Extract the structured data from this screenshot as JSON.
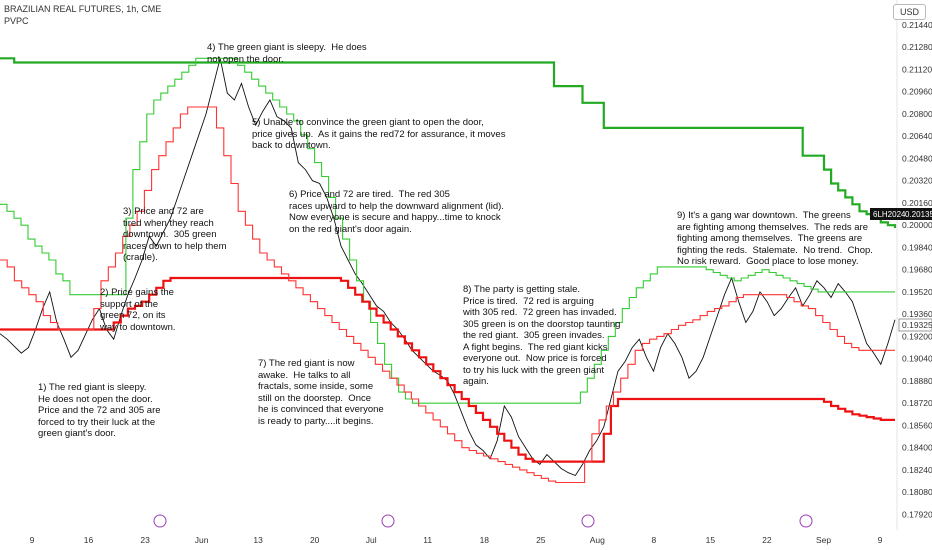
{
  "header": {
    "symbol_line": "BRAZILIAN REAL FUTURES, 1h, CME",
    "indicator": "PVPC",
    "currency": "USD"
  },
  "chart_data": {
    "type": "line",
    "ylim": [
      0.1788,
      0.2149
    ],
    "y_ticks": [
      "0.21440",
      "0.21280",
      "0.21120",
      "0.20960",
      "0.20800",
      "0.20640",
      "0.20480",
      "0.20320",
      "0.20160",
      "0.20000",
      "0.19840",
      "0.19680",
      "0.19520",
      "0.19360",
      "0.19200",
      "0.19040",
      "0.18880",
      "0.18720",
      "0.18560",
      "0.18400",
      "0.18240",
      "0.18080",
      "0.17920"
    ],
    "x_ticks": [
      "9",
      "16",
      "23",
      "Jun",
      "13",
      "20",
      "Jul",
      "11",
      "18",
      "25",
      "Aug",
      "8",
      "15",
      "22",
      "Sep",
      "9"
    ],
    "last_price": {
      "label_symbol": "6LH2024",
      "symbol_value": "0.20135",
      "value": "0.19325"
    },
    "grid": false,
    "series": [
      {
        "kind": "price",
        "color": "#111111",
        "values": [
          0.1922,
          0.1918,
          0.1913,
          0.1908,
          0.1912,
          0.1925,
          0.194,
          0.1952,
          0.193,
          0.1918,
          0.1905,
          0.191,
          0.1921,
          0.1932,
          0.194,
          0.1925,
          0.1918,
          0.1935,
          0.195,
          0.1962,
          0.1975,
          0.1992,
          0.1985,
          0.1995,
          0.2005,
          0.202,
          0.2035,
          0.205,
          0.2065,
          0.208,
          0.21,
          0.212,
          0.2095,
          0.209,
          0.2102,
          0.2085,
          0.2072,
          0.2082,
          0.209,
          0.2078,
          0.2075,
          0.207,
          0.2045,
          0.204,
          0.2032,
          0.203,
          0.202,
          0.2005,
          0.1985,
          0.1975,
          0.1965,
          0.1958,
          0.195,
          0.1942,
          0.1938,
          0.193,
          0.1925,
          0.1918,
          0.191,
          0.1905,
          0.19,
          0.1895,
          0.1892,
          0.1888,
          0.1878,
          0.1865,
          0.1852,
          0.1842,
          0.1838,
          0.1832,
          0.1845,
          0.187,
          0.1862,
          0.1848,
          0.184,
          0.1832,
          0.1828,
          0.1835,
          0.183,
          0.1825,
          0.1822,
          0.182,
          0.1828,
          0.1838,
          0.1845,
          0.1855,
          0.1875,
          0.1895,
          0.1902,
          0.1912,
          0.1918,
          0.1905,
          0.1895,
          0.1912,
          0.1922,
          0.1915,
          0.1905,
          0.189,
          0.1895,
          0.1905,
          0.192,
          0.1935,
          0.195,
          0.1962,
          0.1945,
          0.193,
          0.1938,
          0.1952,
          0.1945,
          0.1935,
          0.194,
          0.1948,
          0.1955,
          0.1942,
          0.195,
          0.196,
          0.1955,
          0.1948,
          0.1958,
          0.1952,
          0.1945,
          0.193,
          0.1915,
          0.1908,
          0.19,
          0.1915,
          0.1932
        ]
      },
      {
        "kind": "green-slow",
        "color": "#22aa22",
        "values": [
          0.212,
          0.212,
          0.2117,
          0.2117,
          0.2117,
          0.2117,
          0.2117,
          0.2117,
          0.2117,
          0.2117,
          0.2117,
          0.2117,
          0.2117,
          0.2117,
          0.2117,
          0.2117,
          0.2117,
          0.2117,
          0.2117,
          0.2117,
          0.2117,
          0.2117,
          0.2117,
          0.2117,
          0.2117,
          0.2117,
          0.2117,
          0.2117,
          0.2117,
          0.2117,
          0.2117,
          0.2117,
          0.2117,
          0.2117,
          0.2117,
          0.2117,
          0.2117,
          0.2117,
          0.2117,
          0.2117,
          0.2117,
          0.2117,
          0.2117,
          0.2117,
          0.2117,
          0.2117,
          0.2117,
          0.2117,
          0.2117,
          0.2117,
          0.2117,
          0.2117,
          0.2117,
          0.2117,
          0.2117,
          0.2117,
          0.2117,
          0.2117,
          0.2117,
          0.2117,
          0.2117,
          0.2117,
          0.2117,
          0.2117,
          0.2117,
          0.2117,
          0.2117,
          0.2117,
          0.2117,
          0.2117,
          0.2117,
          0.2117,
          0.2117,
          0.2117,
          0.2117,
          0.2117,
          0.2117,
          0.2117,
          0.21,
          0.21,
          0.21,
          0.21,
          0.2088,
          0.2088,
          0.2088,
          0.207,
          0.207,
          0.207,
          0.207,
          0.207,
          0.207,
          0.207,
          0.207,
          0.207,
          0.207,
          0.207,
          0.207,
          0.207,
          0.207,
          0.207,
          0.207,
          0.207,
          0.207,
          0.207,
          0.207,
          0.207,
          0.207,
          0.207,
          0.207,
          0.207,
          0.207,
          0.207,
          0.207,
          0.205,
          0.205,
          0.205,
          0.204,
          0.203,
          0.2025,
          0.202,
          0.2015,
          0.201,
          0.2008,
          0.2005,
          0.2002,
          0.2,
          0.1998
        ]
      },
      {
        "kind": "green-fast",
        "color": "#33cc33",
        "values": [
          0.2015,
          0.201,
          0.2005,
          0.2,
          0.199,
          0.1985,
          0.198,
          0.1975,
          0.1965,
          0.196,
          0.195,
          0.195,
          0.195,
          0.195,
          0.195,
          0.195,
          0.195,
          0.195,
          0.2005,
          0.204,
          0.206,
          0.208,
          0.209,
          0.2095,
          0.21,
          0.2105,
          0.211,
          0.2115,
          0.212,
          0.212,
          0.212,
          0.212,
          0.212,
          0.212,
          0.2115,
          0.211,
          0.2105,
          0.21,
          0.2095,
          0.209,
          0.2085,
          0.208,
          0.2075,
          0.2065,
          0.2055,
          0.2045,
          0.2035,
          0.202,
          0.2005,
          0.199,
          0.1975,
          0.196,
          0.1945,
          0.193,
          0.1915,
          0.19,
          0.189,
          0.188,
          0.1875,
          0.1872,
          0.1872,
          0.1872,
          0.1872,
          0.1872,
          0.1872,
          0.1872,
          0.1872,
          0.1872,
          0.1872,
          0.1872,
          0.1872,
          0.1872,
          0.1872,
          0.1872,
          0.1872,
          0.1872,
          0.1872,
          0.1872,
          0.1872,
          0.1872,
          0.1872,
          0.1872,
          0.1872,
          0.188,
          0.189,
          0.19,
          0.191,
          0.192,
          0.193,
          0.194,
          0.1948,
          0.1955,
          0.196,
          0.1965,
          0.197,
          0.197,
          0.197,
          0.197,
          0.197,
          0.197,
          0.197,
          0.1968,
          0.1966,
          0.1964,
          0.1962,
          0.196,
          0.1962,
          0.1964,
          0.1966,
          0.1968,
          0.1966,
          0.1964,
          0.1962,
          0.196,
          0.1958,
          0.1956,
          0.1954,
          0.1952,
          0.1952,
          0.1952,
          0.1952,
          0.1952,
          0.1952,
          0.1952,
          0.1952,
          0.1952,
          0.1952,
          0.1952,
          0.1952
        ]
      },
      {
        "kind": "red-slow",
        "color": "#ee1111",
        "values": [
          0.1925,
          0.1925,
          0.1925,
          0.1925,
          0.1925,
          0.1925,
          0.1925,
          0.1925,
          0.1925,
          0.1925,
          0.1925,
          0.1925,
          0.1925,
          0.1925,
          0.1925,
          0.1925,
          0.193,
          0.1935,
          0.194,
          0.1942,
          0.1945,
          0.195,
          0.1955,
          0.196,
          0.1962,
          0.1962,
          0.1962,
          0.1962,
          0.1962,
          0.1962,
          0.1962,
          0.1962,
          0.1962,
          0.1962,
          0.1962,
          0.1962,
          0.1962,
          0.1962,
          0.1962,
          0.1962,
          0.1962,
          0.1962,
          0.1962,
          0.1962,
          0.1962,
          0.1962,
          0.1962,
          0.1962,
          0.196,
          0.1955,
          0.195,
          0.1945,
          0.194,
          0.1935,
          0.193,
          0.1925,
          0.192,
          0.1915,
          0.191,
          0.1905,
          0.19,
          0.1895,
          0.189,
          0.1885,
          0.188,
          0.1875,
          0.187,
          0.1865,
          0.186,
          0.1855,
          0.185,
          0.1845,
          0.184,
          0.1835,
          0.1832,
          0.183,
          0.183,
          0.183,
          0.183,
          0.183,
          0.183,
          0.183,
          0.183,
          0.183,
          0.183,
          0.185,
          0.187,
          0.1875,
          0.1875,
          0.1875,
          0.1875,
          0.1875,
          0.1875,
          0.1875,
          0.1875,
          0.1875,
          0.1875,
          0.1875,
          0.1875,
          0.1875,
          0.1875,
          0.1875,
          0.1875,
          0.1875,
          0.1875,
          0.1875,
          0.1875,
          0.1875,
          0.1875,
          0.1875,
          0.1875,
          0.1875,
          0.1875,
          0.1875,
          0.1875,
          0.1875,
          0.1873,
          0.187,
          0.1868,
          0.1866,
          0.1864,
          0.1863,
          0.1862,
          0.1861,
          0.186,
          0.186,
          0.186
        ]
      },
      {
        "kind": "red-fast",
        "color": "#ff3333",
        "values": [
          0.1975,
          0.197,
          0.196,
          0.1955,
          0.195,
          0.1945,
          0.1935,
          0.193,
          0.1925,
          0.1925,
          0.1925,
          0.1925,
          0.1925,
          0.194,
          0.196,
          0.197,
          0.198,
          0.1992,
          0.2,
          0.201,
          0.2025,
          0.204,
          0.205,
          0.206,
          0.207,
          0.208,
          0.2085,
          0.2085,
          0.2085,
          0.2085,
          0.207,
          0.205,
          0.203,
          0.201,
          0.2,
          0.199,
          0.198,
          0.1975,
          0.197,
          0.1965,
          0.196,
          0.1955,
          0.195,
          0.1945,
          0.194,
          0.1935,
          0.193,
          0.1925,
          0.192,
          0.1915,
          0.191,
          0.1905,
          0.19,
          0.1895,
          0.189,
          0.1885,
          0.188,
          0.1875,
          0.187,
          0.1865,
          0.186,
          0.1855,
          0.185,
          0.1845,
          0.184,
          0.1838,
          0.1836,
          0.1834,
          0.1832,
          0.183,
          0.1828,
          0.1826,
          0.1824,
          0.1822,
          0.182,
          0.1818,
          0.1816,
          0.1815,
          0.1815,
          0.1815,
          0.1815,
          0.183,
          0.185,
          0.186,
          0.187,
          0.188,
          0.189,
          0.19,
          0.191,
          0.1915,
          0.1918,
          0.192,
          0.1922,
          0.1925,
          0.1928,
          0.193,
          0.1932,
          0.1935,
          0.1938,
          0.194,
          0.1942,
          0.1945,
          0.1948,
          0.195,
          0.195,
          0.195,
          0.195,
          0.195,
          0.195,
          0.1948,
          0.1945,
          0.1942,
          0.194,
          0.1935,
          0.193,
          0.1925,
          0.192,
          0.1915,
          0.1912,
          0.191,
          0.191,
          0.191,
          0.191,
          0.191,
          0.191
        ]
      }
    ]
  },
  "annotations": [
    {
      "id": "n1",
      "text": "1) The red giant is sleepy.\nHe does not open the door.\nPrice and the 72 and 305 are\nforced to try their luck at the\ngreen giant's door."
    },
    {
      "id": "n2",
      "text": "2) Price gains the\nsupport of the\ngreen 72, on its\nway to downtown."
    },
    {
      "id": "n3",
      "text": "3) Price and 72 are\ntired when they reach\ndowntown.  305 green\nraces down to help them\n(cradle)."
    },
    {
      "id": "n4",
      "text": "4) The green giant is sleepy.  He does\nnot open the door."
    },
    {
      "id": "n5",
      "text": "5) Unable to convince the green giant to open the door,\nprice gives up.  As it gains the red72 for assurance, it moves\nback to downtown."
    },
    {
      "id": "n6",
      "text": "6) Price and 72 are tired.  The red 305\nraces upward to help the downward alignment (lid).\nNow everyone is secure and happy...time to knock\non the red giant's door again."
    },
    {
      "id": "n7",
      "text": "7) The red giant is now\nawake.  He talks to all\nfractals, some inside, some\nstill on the doorstep.  Once\nhe is convinced that everyone\nis ready to party....it begins."
    },
    {
      "id": "n8",
      "text": "8) The party is getting stale.\nPrice is tired.  72 red is arguing\nwith 305 red.  72 green has invaded.\n305 green is on the doorstop taunting\nthe red giant.  305 green invades.\nA fight begins.  The red giant kicks\neveryone out.  Now price is forced\nto try his luck with the green giant\nagain."
    },
    {
      "id": "n9",
      "text": "9) It's a gang war downtown.  The greens\nare fighting among themselves.  The reds are\nfighting among themselves.  The greens are\nfighting the reds.  Stalemate.  No trend.  Chop.\nNo risk reward.  Good place to lose money."
    }
  ]
}
